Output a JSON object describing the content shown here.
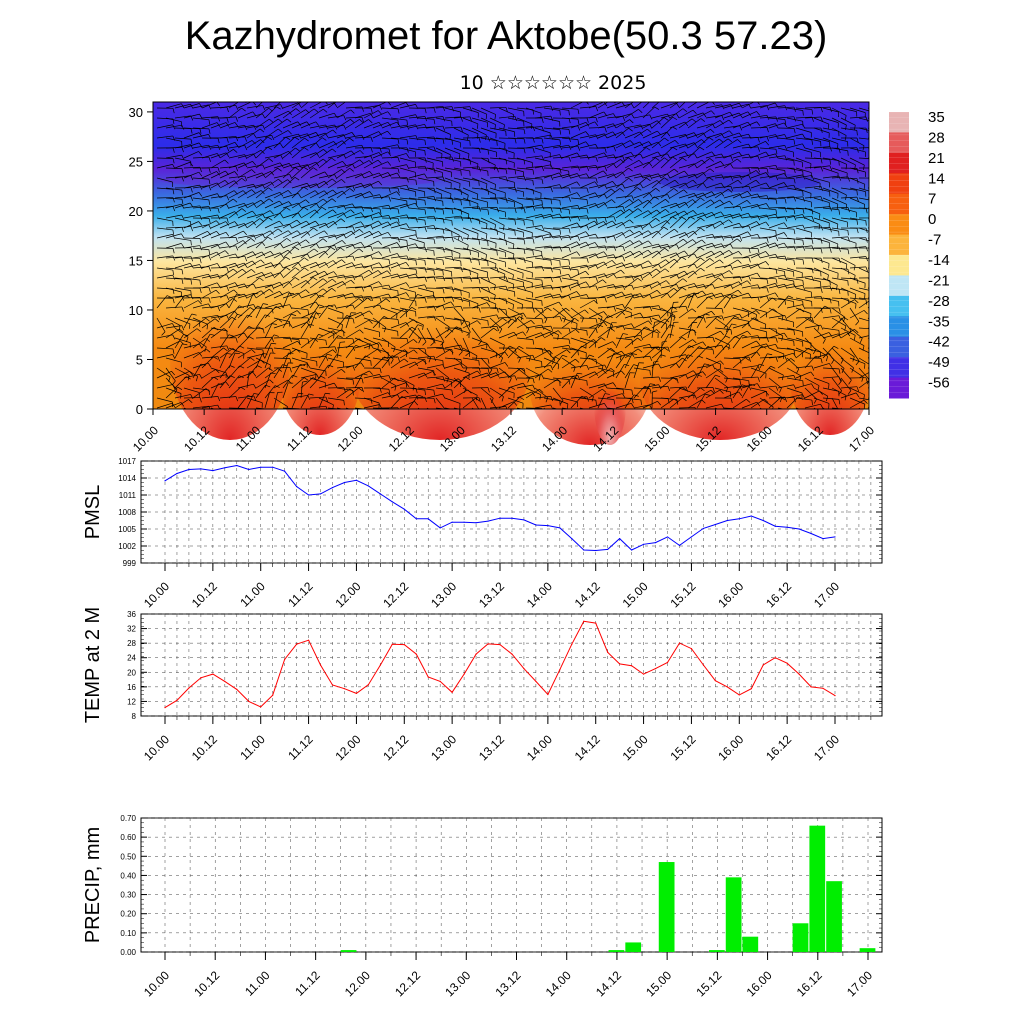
{
  "title": "Kazhydromet for Aktobe(50.3 57.23)",
  "subtitle": "10 ☆☆☆☆☆☆ 2025",
  "time_labels_a": [
    "10.00",
    "10.12",
    "11.00",
    "11.12",
    "12.00",
    "12.12",
    "13.00",
    "13.12",
    "14.00",
    "14.12",
    "15.00",
    "15.12",
    "16.00",
    "16.12",
    "17.00"
  ],
  "chart_data": [
    {
      "type": "heatmap",
      "description_label": "",
      "ylim": [
        0,
        31
      ],
      "yticks": [
        0,
        5,
        10,
        15,
        20,
        25,
        30
      ],
      "x_tick_labels": [
        "10.00",
        "10.12",
        "11.00",
        "11.12",
        "12.00",
        "12.12",
        "13.00",
        "13.12",
        "14.00",
        "14.12",
        "15.00",
        "15.12",
        "16.00",
        "16.12",
        "17.00"
      ],
      "colorbar_labels": [
        "35",
        "28",
        "21",
        "14",
        "7",
        "0",
        "-7",
        "-14",
        "-21",
        "-28",
        "-35",
        "-42",
        "-49",
        "-56"
      ],
      "colorbar_colors": [
        "#e8b4b4",
        "#e65b5b",
        "#e02020",
        "#f04010",
        "#f76010",
        "#fa8c14",
        "#fcb43c",
        "#fde890",
        "#bfe6f5",
        "#46c0f0",
        "#2a90e6",
        "#3a60e0",
        "#4030e6",
        "#6a1ad8"
      ],
      "overlay": "wind barbs"
    },
    {
      "type": "line",
      "ylabel": "PMSL",
      "ylim": [
        999,
        1017
      ],
      "yticks": [
        999,
        1002,
        1005,
        1008,
        1011,
        1014,
        1017
      ],
      "x_tick_labels": [
        "10.00",
        "10.12",
        "11.00",
        "11.12",
        "12.00",
        "12.12",
        "13.00",
        "13.12",
        "14.00",
        "14.12",
        "15.00",
        "15.12",
        "16.00",
        "16.12",
        "17.00"
      ],
      "color": "#0000ff",
      "values": [
        1013.5,
        1014.8,
        1015.5,
        1015.6,
        1015.3,
        1015.8,
        1016.2,
        1015.5,
        1015.9,
        1015.9,
        1015.2,
        1012.5,
        1011.0,
        1011.2,
        1012.3,
        1013.2,
        1013.6,
        1012.6,
        1011.2,
        1009.8,
        1008.5,
        1006.8,
        1006.8,
        1005.2,
        1006.2,
        1006.2,
        1006.1,
        1006.4,
        1006.9,
        1006.9,
        1006.6,
        1005.7,
        1005.6,
        1005.2,
        1003.3,
        1001.3,
        1001.2,
        1001.4,
        1003.3,
        1001.3,
        1002.3,
        1002.6,
        1003.6,
        1002.1,
        1003.6,
        1005.1,
        1005.8,
        1006.5,
        1006.8,
        1007.3,
        1006.5,
        1005.5,
        1005.3,
        1005.0,
        1004.2,
        1003.3,
        1003.6
      ]
    },
    {
      "type": "line",
      "ylabel": "TEMP at 2 M",
      "ylim": [
        8,
        36
      ],
      "yticks": [
        8,
        12,
        16,
        20,
        24,
        28,
        32,
        36
      ],
      "x_tick_labels": [
        "10.00",
        "10.12",
        "11.00",
        "11.12",
        "12.00",
        "12.12",
        "13.00",
        "13.12",
        "14.00",
        "14.12",
        "15.00",
        "15.12",
        "16.00",
        "16.12",
        "17.00"
      ],
      "color": "#ff0000",
      "values": [
        10.3,
        12.3,
        15.7,
        18.5,
        19.5,
        17.5,
        15.3,
        12.0,
        10.5,
        13.7,
        23.5,
        27.7,
        28.8,
        22.0,
        16.5,
        15.5,
        14.2,
        16.6,
        22.0,
        27.7,
        27.6,
        25.0,
        18.7,
        17.5,
        14.5,
        19.5,
        25.0,
        27.8,
        27.6,
        25.0,
        21.0,
        17.5,
        13.9,
        20.7,
        27.7,
        34.0,
        33.5,
        25.5,
        22.3,
        21.8,
        19.5,
        21.0,
        22.7,
        28.0,
        26.5,
        22.0,
        17.7,
        16.0,
        13.8,
        15.5,
        22.0,
        24.0,
        22.5,
        19.5,
        16.0,
        15.6,
        13.6
      ]
    },
    {
      "type": "bar",
      "ylabel": "PRECIP, mm",
      "ylim": [
        0,
        0.7
      ],
      "yticks": [
        "0.00",
        "0.10",
        "0.20",
        "0.30",
        "0.40",
        "0.50",
        "0.60",
        "0.70"
      ],
      "x_tick_labels": [
        "10.00",
        "10.12",
        "11.00",
        "11.12",
        "12.00",
        "12.12",
        "13.00",
        "13.12",
        "14.00",
        "14.12",
        "15.00",
        "15.12",
        "16.00",
        "16.12",
        "17.00"
      ],
      "color": "#00ee00",
      "bars": [
        {
          "x": 1.833,
          "value": 0.01
        },
        {
          "x": 4.5,
          "value": 0.01
        },
        {
          "x": 4.667,
          "value": 0.05
        },
        {
          "x": 5.0,
          "value": 0.47
        },
        {
          "x": 5.5,
          "value": 0.01
        },
        {
          "x": 5.667,
          "value": 0.39
        },
        {
          "x": 5.833,
          "value": 0.08
        },
        {
          "x": 6.333,
          "value": 0.15
        },
        {
          "x": 6.5,
          "value": 0.66
        },
        {
          "x": 6.667,
          "value": 0.37
        },
        {
          "x": 7.0,
          "value": 0.02
        }
      ]
    }
  ]
}
